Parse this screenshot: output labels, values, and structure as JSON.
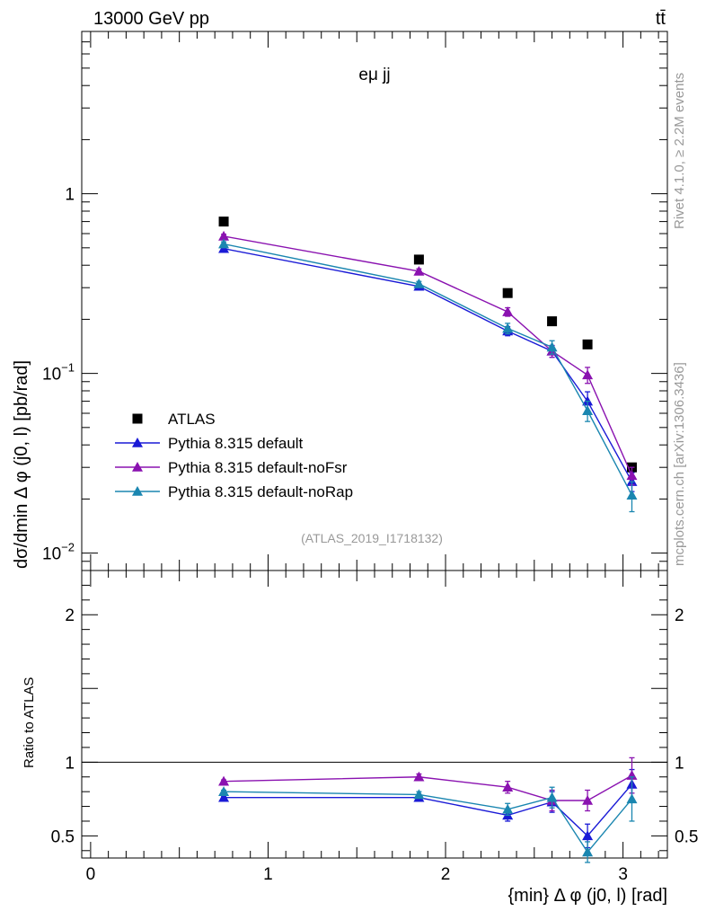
{
  "header": {
    "beam": "13000 GeV pp",
    "process": "tt̄",
    "channel": "eμ jj",
    "analysis_id": "(ATLAS_2019_I1718132)",
    "side_label_1": "Rivet 4.1.0, ≥ 2.2M events",
    "side_label_2": "mcplots.cern.ch [arXiv:1306.3436]"
  },
  "chart_data": [
    {
      "type": "scatter",
      "panel": "main",
      "ylabel": "dσ/dmin Δ φ (j0, l) [pb/rad]",
      "yscale": "log",
      "ylim": [
        0.008,
        8
      ],
      "xlim": [
        -0.05,
        3.25
      ],
      "yticks": [
        {
          "value": 1,
          "label": "1"
        },
        {
          "value": 0.1,
          "label": "10^-1"
        },
        {
          "value": 0.01,
          "label": "10^-2"
        }
      ],
      "x": [
        0.75,
        1.85,
        2.35,
        2.6,
        2.8,
        3.05
      ],
      "series": [
        {
          "name": "ATLAS",
          "color": "#000000",
          "marker": "square",
          "line": false,
          "values": [
            0.7,
            0.43,
            0.28,
            0.195,
            0.145,
            0.03
          ],
          "errors": [
            0,
            0,
            0,
            0,
            0,
            0
          ]
        },
        {
          "name": "Pythia 8.315 default",
          "color": "#1a1ad6",
          "marker": "triangle",
          "line": true,
          "values": [
            0.495,
            0.305,
            0.172,
            0.133,
            0.07,
            0.025
          ],
          "errors": [
            0.015,
            0.01,
            0.01,
            0.01,
            0.009,
            0.003
          ]
        },
        {
          "name": "Pythia 8.315 default-noFsr",
          "color": "#8a12b0",
          "marker": "triangle",
          "line": true,
          "values": [
            0.58,
            0.37,
            0.22,
            0.133,
            0.098,
            0.027
          ],
          "errors": [
            0.015,
            0.012,
            0.012,
            0.01,
            0.01,
            0.003
          ]
        },
        {
          "name": "Pythia 8.315 default-noRap",
          "color": "#1a86b0",
          "marker": "triangle",
          "line": true,
          "values": [
            0.525,
            0.315,
            0.178,
            0.14,
            0.062,
            0.021
          ],
          "errors": [
            0.015,
            0.01,
            0.012,
            0.012,
            0.008,
            0.004
          ]
        }
      ]
    },
    {
      "type": "line",
      "panel": "ratio",
      "title": "",
      "xlabel": "{min} Δ φ (j0, l) [rad]",
      "ylabel": "Ratio to ATLAS",
      "ylim": [
        0.35,
        2.3
      ],
      "xlim": [
        -0.05,
        3.25
      ],
      "xticks": [
        0,
        1,
        2,
        3
      ],
      "yticks": [
        0.5,
        1,
        2
      ],
      "reference_line": 1,
      "x": [
        0.75,
        1.85,
        2.35,
        2.6,
        2.8,
        3.05
      ],
      "series": [
        {
          "name": "Pythia 8.315 default",
          "color": "#1a1ad6",
          "values": [
            0.76,
            0.76,
            0.64,
            0.73,
            0.5,
            0.85
          ],
          "errors": [
            0.01,
            0.02,
            0.04,
            0.07,
            0.08,
            0.1
          ]
        },
        {
          "name": "Pythia 8.315 default-noFsr",
          "color": "#8a12b0",
          "values": [
            0.87,
            0.9,
            0.83,
            0.74,
            0.74,
            0.91
          ],
          "errors": [
            0.01,
            0.02,
            0.04,
            0.07,
            0.07,
            0.12
          ]
        },
        {
          "name": "Pythia 8.315 default-noRap",
          "color": "#1a86b0",
          "values": [
            0.8,
            0.78,
            0.68,
            0.76,
            0.39,
            0.75
          ],
          "errors": [
            0.01,
            0.02,
            0.04,
            0.07,
            0.07,
            0.15
          ]
        }
      ]
    }
  ]
}
